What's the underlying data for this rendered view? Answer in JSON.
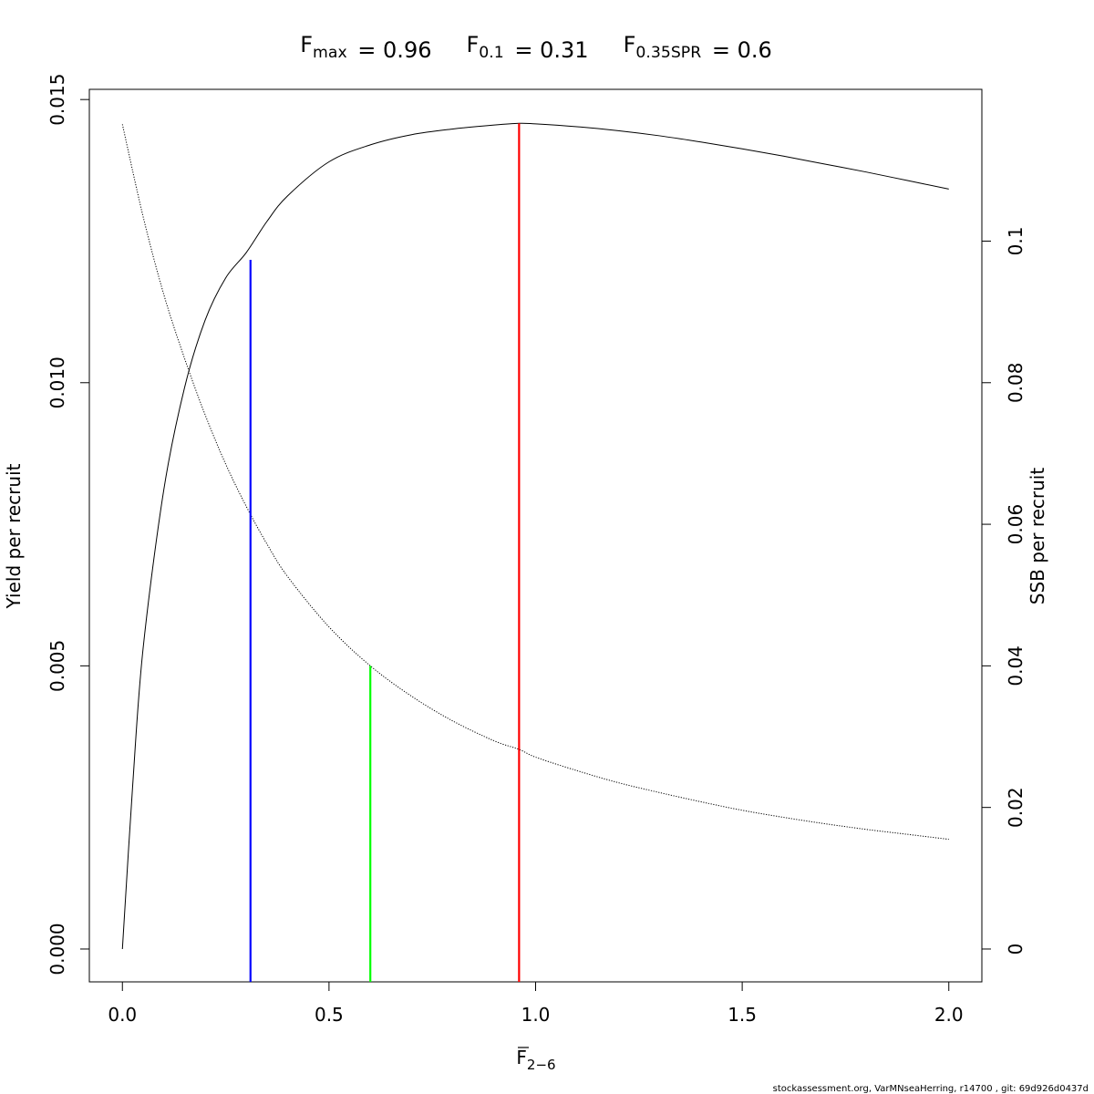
{
  "chart_data": {
    "type": "line",
    "title_parts": [
      {
        "symbol": "F",
        "subscript": "max",
        "equals": "= 0.96"
      },
      {
        "symbol": "F",
        "subscript": "0.1",
        "equals": "= 0.31"
      },
      {
        "symbol": "F",
        "subscript": "0.35SPR",
        "equals": "= 0.6"
      }
    ],
    "xlabel": {
      "symbol": "F",
      "subscript": "2−6"
    },
    "ylabel_left": "Yield per recruit",
    "ylabel_right": "SSB per recruit",
    "footer": "stockassessment.org, VarMNseaHerring, r14700 , git: 69d926d0437d",
    "xlim": [
      -0.08,
      2.08
    ],
    "ylim_left": [
      -0.00058,
      0.01518
    ],
    "ylim_right": [
      -0.00464,
      0.12144
    ],
    "x_ticks": [
      0.0,
      0.5,
      1.0,
      1.5,
      2.0
    ],
    "x_tick_labels": [
      "0.0",
      "0.5",
      "1.0",
      "1.5",
      "2.0"
    ],
    "y_left_ticks": [
      0.0,
      0.005,
      0.01,
      0.015
    ],
    "y_left_tick_labels": [
      "0.000",
      "0.005",
      "0.010",
      "0.015"
    ],
    "y_right_ticks": [
      0,
      0.02,
      0.04,
      0.06,
      0.08,
      0.1
    ],
    "y_right_tick_labels": [
      "0",
      "0.02",
      "0.04",
      "0.06",
      "0.08",
      "0.1"
    ],
    "grid": false,
    "series": [
      {
        "axis": "left",
        "style": "solid",
        "color": "#000000",
        "x": [
          0.0,
          0.025,
          0.05,
          0.1,
          0.15,
          0.2,
          0.25,
          0.3,
          0.35,
          0.4,
          0.5,
          0.6,
          0.7,
          0.8,
          0.9,
          0.96,
          1.0,
          1.1,
          1.2,
          1.3,
          1.4,
          1.5,
          1.6,
          1.7,
          1.8,
          1.9,
          2.0
        ],
        "y": [
          0.0,
          0.0029,
          0.0053,
          0.0081,
          0.0099,
          0.0111,
          0.01185,
          0.0123,
          0.01285,
          0.0133,
          0.0139,
          0.0142,
          0.01438,
          0.01448,
          0.01455,
          0.01458,
          0.01457,
          0.01452,
          0.01445,
          0.01436,
          0.01425,
          0.01413,
          0.014,
          0.01386,
          0.01372,
          0.01357,
          0.01342
        ]
      },
      {
        "axis": "right",
        "style": "dotted",
        "color": "#000000",
        "x": [
          0.0,
          0.05,
          0.1,
          0.15,
          0.2,
          0.25,
          0.3,
          0.35,
          0.4,
          0.5,
          0.6,
          0.7,
          0.8,
          0.9,
          0.96,
          1.0,
          1.1,
          1.2,
          1.3,
          1.4,
          1.5,
          1.6,
          1.7,
          1.8,
          1.9,
          2.0
        ],
        "y": [
          0.1165,
          0.1035,
          0.0925,
          0.0835,
          0.0755,
          0.0685,
          0.0625,
          0.0572,
          0.0526,
          0.0455,
          0.04,
          0.0357,
          0.0322,
          0.0294,
          0.0282,
          0.0271,
          0.0252,
          0.0235,
          0.0221,
          0.0208,
          0.0196,
          0.0186,
          0.0177,
          0.0169,
          0.0162,
          0.0155
        ]
      }
    ],
    "reference_lines": [
      {
        "label": "F0.1",
        "x": 0.31,
        "axis": "left",
        "y_top": 0.01217,
        "color": "#0000ff"
      },
      {
        "label": "F0.35SPR",
        "x": 0.6,
        "axis": "right",
        "y_top": 0.04,
        "color": "#00ff00"
      },
      {
        "label": "Fmax",
        "x": 0.96,
        "axis": "left",
        "y_top": 0.01458,
        "color": "#ff0000"
      }
    ]
  }
}
